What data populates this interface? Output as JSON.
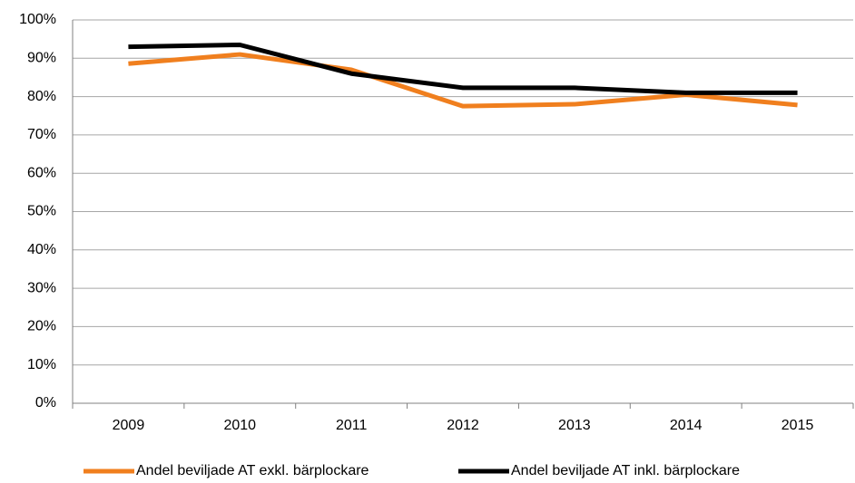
{
  "chart_data": {
    "type": "line",
    "categories": [
      "2009",
      "2010",
      "2011",
      "2012",
      "2013",
      "2014",
      "2015"
    ],
    "series": [
      {
        "name": "Andel beviljade AT exkl. bärplockare",
        "color": "#f07f1e",
        "values": [
          88.6,
          91,
          87,
          77.5,
          78,
          80.5,
          77.8
        ]
      },
      {
        "name": "Andel beviljade AT inkl. bärplockare",
        "color": "#000000",
        "values": [
          93,
          93.5,
          86,
          82.3,
          82.3,
          81,
          81
        ]
      }
    ],
    "ylim": [
      0,
      100
    ],
    "yticks": [
      {
        "value": 0,
        "label": "0%"
      },
      {
        "value": 10,
        "label": "10%"
      },
      {
        "value": 20,
        "label": "20%"
      },
      {
        "value": 30,
        "label": "30%"
      },
      {
        "value": 40,
        "label": "40%"
      },
      {
        "value": 50,
        "label": "50%"
      },
      {
        "value": 60,
        "label": "60%"
      },
      {
        "value": 70,
        "label": "70%"
      },
      {
        "value": 80,
        "label": "80%"
      },
      {
        "value": 90,
        "label": "90%"
      },
      {
        "value": 100,
        "label": "100%"
      }
    ],
    "grid": true
  }
}
